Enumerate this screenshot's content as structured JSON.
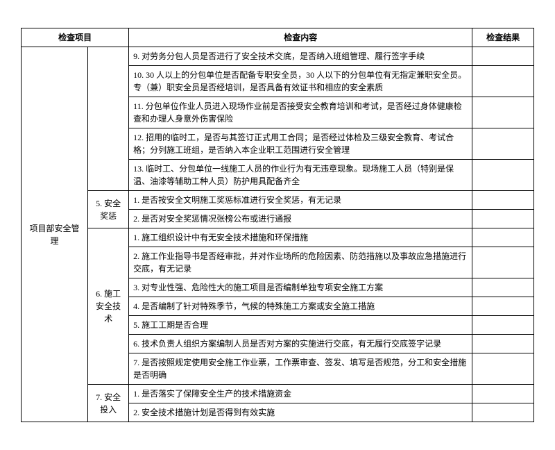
{
  "headers": {
    "project": "检查项目",
    "content": "检查内容",
    "result": "检查结果"
  },
  "project_label": "项目部安全管理",
  "sections": {
    "s1_label": "",
    "s1_r1": "9. 对劳务分包人员是否进行了安全技术交底，是否纳入班组管理、履行签字手续",
    "s1_r2": "10. 30 人以上的分包单位是否配备专职安全员，30 人以下的分包单位有无指定兼职安全员。专（兼）职安全员是否经培训，是否具备有效证书和相应的安全素质",
    "s1_r3": "11.  分包单位作业人员进入现场作业前是否接受安全教育培训和考试，是否经过身体健康检查和办理人身意外伤害保险",
    "s1_r4": "12. 招用的临时工，是否与其签订正式用工合同；是否经过体检及三级安全教育、考试合格；分列施工班组，是否纳入本企业职工范围进行安全管理",
    "s1_r5": "13. 临时工、分包单位一线施工人员的作业行为有无违章现象。现场施工人员（特别是保温、油漆等辅助工种人员）防护用具配备齐全",
    "s2_label": "5. 安全奖惩",
    "s2_r1": "1.  是否按安全文明施工奖惩标准进行安全奖惩，有无记录",
    "s2_r2": "2.  是否对安全奖惩情况张榜公布或进行通报",
    "s3_label": "6. 施工安全技术",
    "s3_r1": "1.  施工组织设计中有无安全技术措施和环保措施",
    "s3_r2": "2.  施工作业指导书是否经审批，并对作业场所的危险因素、防范措施以及事故应急措施进行交底，有无记录",
    "s3_r3": "3.  对专业性强、危险性大的施工项目是否编制单独专项安全施工方案",
    "s3_r4": "4.  是否编制了针对特殊季节，气候的特殊施工方案或安全施工措施",
    "s3_r5": "5.  施工工期是否合理",
    "s3_r6": "6.  技术负责人组织方案编制人员是否对方案的实施进行交底，有无履行交底签字记录",
    "s3_r7": "7.  是否按照规定使用安全施工作业票，工作票审查、签发、填写是否规范，分工和安全措施是否明确",
    "s4_label": "7. 安全投入",
    "s4_r1": "1.  是否落实了保障安全生产的技术措施资金",
    "s4_r2": "2.  安全技术措施计划是否得到有效实施"
  }
}
